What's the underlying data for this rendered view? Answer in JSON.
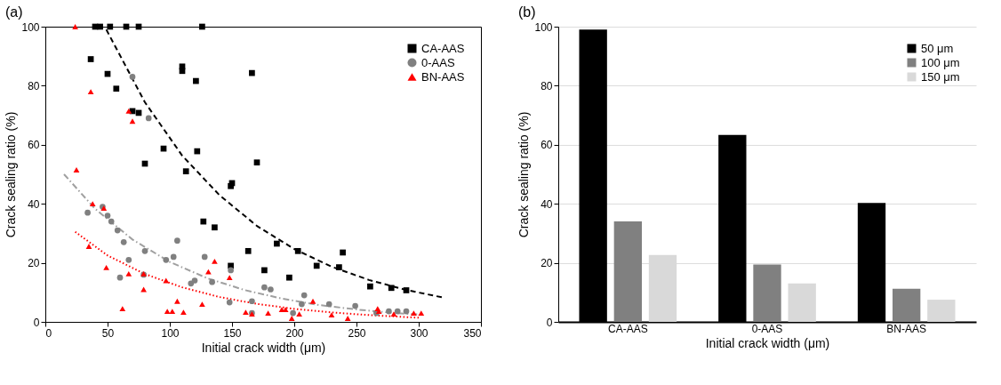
{
  "chart_data": [
    {
      "type": "scatter",
      "title": "(a)",
      "xlabel": "Initial crack width (μm)",
      "ylabel": "Crack sealing ratio (%)",
      "xlim": [
        0,
        350
      ],
      "xticks": [
        0,
        50,
        100,
        150,
        200,
        250,
        300,
        350
      ],
      "ylim": [
        0,
        100
      ],
      "yticks": [
        0,
        20,
        40,
        60,
        80,
        100
      ],
      "grid": false,
      "legend": "top right",
      "series": [
        {
          "name": "CA-AAS",
          "color": "#000000",
          "marker": "square",
          "x": [
            40,
            44,
            52,
            65,
            75,
            126,
            36.5,
            50,
            57,
            70,
            75,
            80,
            95,
            113,
            110,
            110,
            121,
            122,
            166,
            170,
            149,
            150,
            127,
            136,
            163,
            186,
            203,
            149,
            176,
            196,
            218,
            236,
            239,
            261,
            278,
            290
          ],
          "values": [
            100,
            100,
            100,
            100,
            100,
            100,
            89,
            84,
            79,
            71.4,
            70.8,
            53.6,
            58.7,
            51,
            86.5,
            85,
            81.6,
            57.8,
            84.3,
            54,
            46,
            47,
            34,
            32,
            24,
            26.5,
            24,
            19,
            17.5,
            15,
            19,
            18.5,
            23.5,
            12,
            11.5,
            10.7
          ]
        },
        {
          "name": "0-AAS",
          "color": "#808080",
          "marker": "circle",
          "x": [
            70,
            83,
            34,
            46,
            50,
            53,
            58,
            63,
            67,
            60,
            80,
            79,
            97,
            103,
            106,
            117,
            120,
            128,
            134,
            149,
            148,
            166,
            166,
            176,
            181,
            199,
            206,
            208,
            228,
            249,
            266,
            276,
            283,
            290
          ],
          "values": [
            83,
            69,
            37,
            39,
            36,
            34,
            31,
            27,
            21,
            15,
            24,
            16,
            21,
            22,
            27.5,
            13,
            14,
            22,
            13.5,
            17.5,
            6.6,
            7,
            3,
            11.7,
            11,
            3,
            6,
            9,
            6,
            5.4,
            3,
            3.6,
            3.6,
            3.6
          ]
        },
        {
          "name": "BN-AAS",
          "color": "#ff0000",
          "marker": "triangle",
          "x": [
            24,
            36.5,
            25,
            38,
            47,
            67,
            70,
            35,
            49,
            62,
            67,
            79,
            79,
            97,
            98,
            102,
            106,
            111,
            126,
            131,
            136,
            148,
            161,
            166,
            179,
            190,
            193,
            198,
            204,
            215,
            230,
            243,
            267,
            268,
            280,
            296,
            302
          ],
          "values": [
            100,
            78,
            51.5,
            40,
            38.5,
            71.4,
            68,
            25.6,
            18.4,
            4.5,
            16.3,
            16.3,
            11,
            14,
            3.6,
            3.6,
            7,
            3.3,
            6,
            17,
            20.5,
            15,
            3.3,
            2.7,
            3,
            4.2,
            4.2,
            1.2,
            2.7,
            7,
            2.4,
            1.2,
            4.5,
            3.6,
            2.7,
            3,
            3
          ]
        },
        {
          "type": "line",
          "color": "#000000",
          "line_style": "dashed",
          "x": [
            49,
            80,
            110,
            140,
            170,
            200,
            230,
            260,
            290,
            320
          ],
          "values": [
            99,
            74.4,
            56.3,
            42.9,
            32.5,
            24.7,
            18.7,
            14.2,
            10.8,
            8.2
          ]
        },
        {
          "type": "line",
          "color": "#a0a0a0",
          "line_style": "dashdot",
          "x": [
            15,
            40,
            70,
            100,
            130,
            160,
            190,
            220,
            250,
            280,
            300
          ],
          "values": [
            50,
            38.3,
            27.9,
            20.3,
            14.8,
            10.8,
            7.9,
            5.7,
            4.2,
            3.0,
            2.5
          ]
        },
        {
          "type": "line",
          "color": "#ff0000",
          "line_style": "dotted",
          "x": [
            24,
            50,
            80,
            110,
            140,
            170,
            200,
            230,
            260,
            300
          ],
          "values": [
            30.5,
            22.5,
            16.2,
            11.7,
            8.4,
            6.1,
            4.4,
            3.2,
            2.3,
            1.4
          ]
        }
      ]
    },
    {
      "type": "bar",
      "title": "(b)",
      "xlabel": "Initial crack width (μm)",
      "ylabel": "Crack sealing ratio (%)",
      "categories": [
        "CA-AAS",
        "0-AAS",
        "BN-AAS"
      ],
      "ylim": [
        0,
        100
      ],
      "yticks": [
        0,
        20,
        40,
        60,
        80,
        100
      ],
      "grid": "y",
      "legend": "top right",
      "series": [
        {
          "name": "50 μm",
          "color": "#000000",
          "values": [
            99,
            63.3,
            40.3
          ]
        },
        {
          "name": "100 μm",
          "color": "#808080",
          "values": [
            34,
            19.4,
            11.2
          ]
        },
        {
          "name": "150 μm",
          "color": "#d9d9d9",
          "values": [
            22.7,
            13,
            7.5
          ]
        }
      ]
    }
  ]
}
